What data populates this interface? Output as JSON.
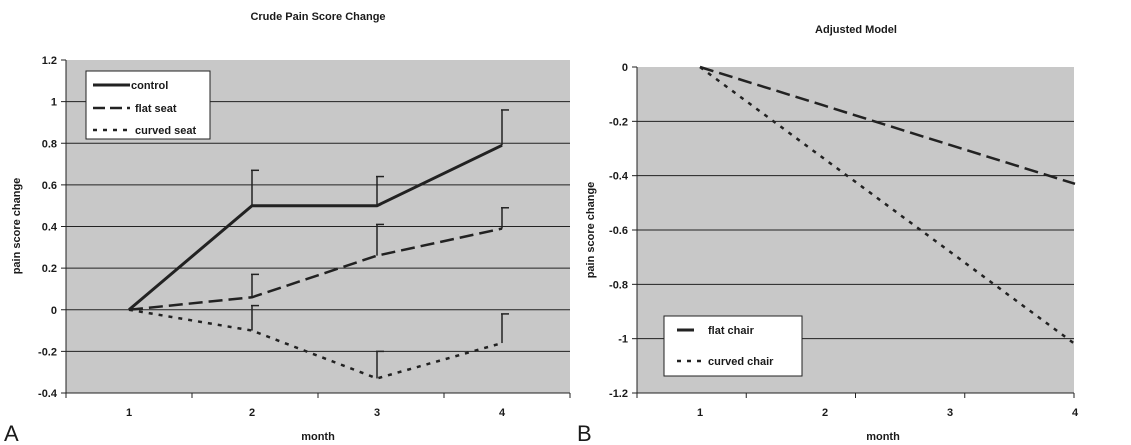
{
  "chart_data": [
    {
      "panel_label": "A",
      "type": "line",
      "title": "Crude Pain Score Change",
      "xlabel": "month",
      "ylabel": "pain score change",
      "categories": [
        "1",
        "2",
        "3",
        "4"
      ],
      "ylim": [
        -0.4,
        1.2
      ],
      "yticks": [
        "1.2",
        "1",
        "0.8",
        "0.6",
        "0.4",
        "0.2",
        "0",
        "-0.2",
        "-0.4"
      ],
      "ytick_values": [
        1.2,
        1,
        0.8,
        0.6,
        0.4,
        0.2,
        0,
        -0.2,
        -0.4
      ],
      "grid": true,
      "legend_position": "top-left",
      "series": [
        {
          "name": "control",
          "style": "solid",
          "values": [
            0,
            0.5,
            0.5,
            0.79
          ],
          "error_upper": [
            null,
            0.67,
            0.64,
            0.96
          ]
        },
        {
          "name": "flat seat",
          "style": "dashed",
          "values": [
            0,
            0.06,
            0.26,
            0.39
          ],
          "error_upper": [
            null,
            0.17,
            0.41,
            0.49
          ]
        },
        {
          "name": "curved seat",
          "style": "dotted",
          "values": [
            0,
            -0.1,
            -0.33,
            -0.16
          ],
          "error_upper": [
            null,
            0.02,
            -0.2,
            -0.02
          ]
        }
      ]
    },
    {
      "panel_label": "B",
      "type": "line",
      "title": "Adjusted Model",
      "xlabel": "month",
      "ylabel": "pain score change",
      "categories": [
        "1",
        "2",
        "3",
        "4"
      ],
      "ylim": [
        -1.2,
        0
      ],
      "yticks": [
        "0",
        "-0.2",
        "-0.4",
        "-0.6",
        "-0.8",
        "-1",
        "-1.2"
      ],
      "ytick_values": [
        0,
        -0.2,
        -0.4,
        -0.6,
        -0.8,
        -1,
        -1.2
      ],
      "grid": true,
      "legend_position": "bottom-left",
      "series": [
        {
          "name": "flat chair",
          "style": "dashed",
          "values": [
            0,
            -0.143,
            -0.287,
            -0.43
          ]
        },
        {
          "name": "curved chair",
          "style": "dotted",
          "values": [
            0,
            -0.34,
            -0.68,
            -1.02
          ]
        }
      ]
    }
  ],
  "colors": {
    "plot_area": "#c8c8c8",
    "grid_line": "#222222",
    "series_line": "#222222"
  }
}
